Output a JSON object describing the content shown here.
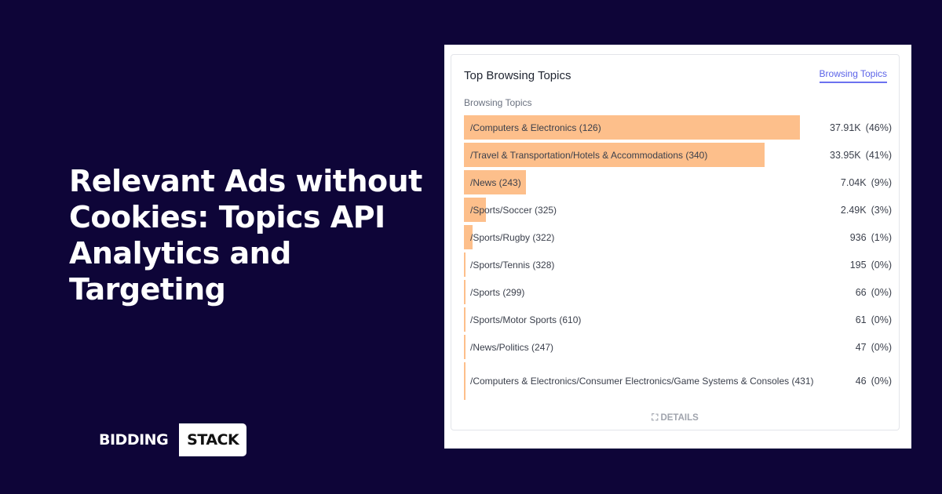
{
  "headline": "Relevant Ads without Cookies: Topics API Analytics and Targeting",
  "logo": {
    "part1": "BIDDING",
    "part2": "STACK"
  },
  "card": {
    "title": "Top Browsing Topics",
    "tab": "Browsing Topics",
    "subtitle": "Browsing Topics",
    "details": "DETAILS",
    "bar_color": "#fdbf8b",
    "rows": [
      {
        "label": "/Computers & Electronics (126)",
        "value": "37.91K",
        "pct": "(46%)",
        "num": 37910
      },
      {
        "label": "/Travel & Transportation/Hotels & Accommodations (340)",
        "value": "33.95K",
        "pct": "(41%)",
        "num": 33950
      },
      {
        "label": "/News (243)",
        "value": "7.04K",
        "pct": "(9%)",
        "num": 7040
      },
      {
        "label": "/Sports/Soccer (325)",
        "value": "2.49K",
        "pct": "(3%)",
        "num": 2490
      },
      {
        "label": "/Sports/Rugby (322)",
        "value": "936",
        "pct": "(1%)",
        "num": 936
      },
      {
        "label": "/Sports/Tennis (328)",
        "value": "195",
        "pct": "(0%)",
        "num": 195
      },
      {
        "label": "/Sports (299)",
        "value": "66",
        "pct": "(0%)",
        "num": 66
      },
      {
        "label": "/Sports/Motor Sports (610)",
        "value": "61",
        "pct": "(0%)",
        "num": 61
      },
      {
        "label": "/News/Politics (247)",
        "value": "47",
        "pct": "(0%)",
        "num": 47
      },
      {
        "label": "/Computers & Electronics/Consumer Electronics/Game Systems & Consoles (431)",
        "value": "46",
        "pct": "(0%)",
        "num": 46
      }
    ]
  }
}
